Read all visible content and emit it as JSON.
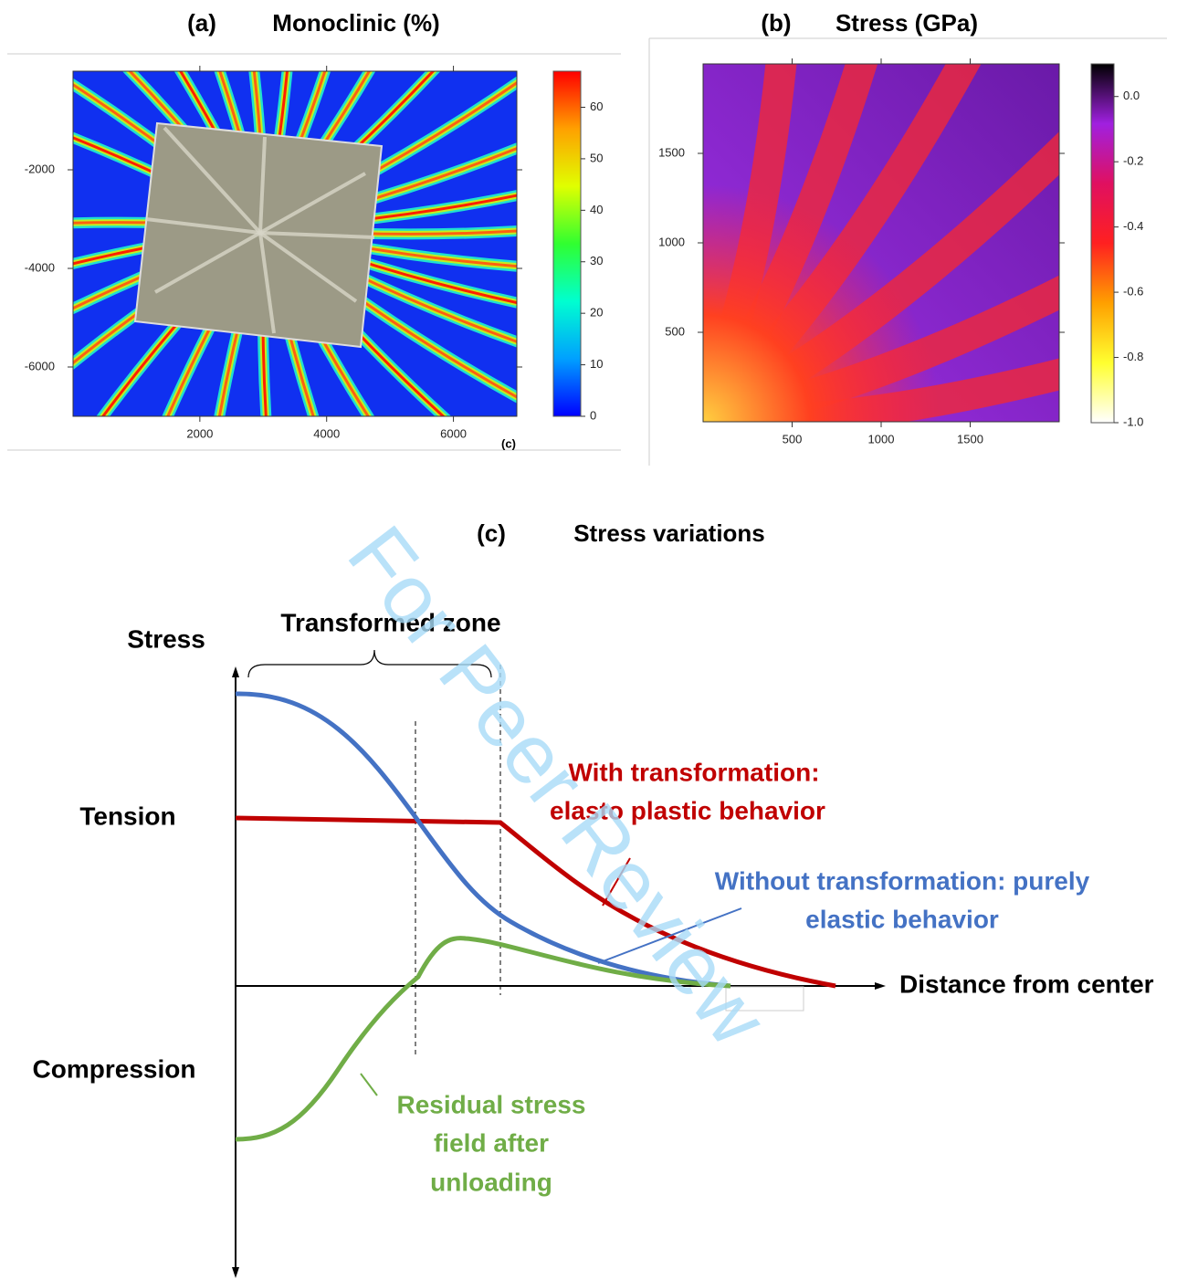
{
  "chart_data": [
    {
      "type": "heatmap",
      "label": "(a)",
      "title": "Monoclinic (%)",
      "annotation": "(c)",
      "xlim": [
        0,
        7000
      ],
      "xticks": [
        2000,
        4000,
        6000
      ],
      "ylim": [
        -7000,
        0
      ],
      "yticks": [
        -2000,
        -4000,
        -6000
      ],
      "colorscale": {
        "lim": [
          0,
          67
        ],
        "ticks": [
          0,
          10,
          20,
          30,
          40,
          50,
          60
        ],
        "colors": [
          "#0000ff",
          "#00a0ff",
          "#00ffd0",
          "#30ff30",
          "#e0ff00",
          "#ffa000",
          "#ff0000"
        ]
      }
    },
    {
      "type": "heatmap",
      "label": "(b)",
      "title": "Stress (GPa)",
      "xlim": [
        0,
        2000
      ],
      "xticks": [
        500,
        1000,
        1500
      ],
      "ylim": [
        0,
        2000
      ],
      "yticks": [
        500,
        1000,
        1500
      ],
      "colorscale": {
        "lim": [
          -1.0,
          0.1
        ],
        "ticks": [
          {
            "value": 0,
            "label": "0.0"
          },
          -0.2,
          -0.4,
          -0.6,
          -0.8,
          {
            "value": -1.0,
            "label": "-1.0"
          }
        ],
        "colors": [
          "#ffffff",
          "#ffff30",
          "#ffa000",
          "#ff2020",
          "#e01060",
          "#a020e0",
          "#000000"
        ]
      }
    }
  ],
  "diagram": {
    "label": "(c)",
    "title": "Stress variations",
    "y_axis_label": "Stress",
    "brace_label": "Transformed zone",
    "tension_label": "Tension",
    "compression_label": "Compression",
    "x_axis_label": "Distance from center",
    "curves": [
      {
        "color": "#c00000",
        "label_lines": [
          "With transformation:",
          "elasto plastic behavior"
        ]
      },
      {
        "color": "#4472c4",
        "label_lines": [
          "Without transformation: purely",
          "elastic behavior"
        ]
      },
      {
        "color": "#70ad47",
        "label_lines": [
          "Residual stress",
          "field after",
          "unloading"
        ]
      }
    ]
  },
  "watermark": "For Peer Review"
}
